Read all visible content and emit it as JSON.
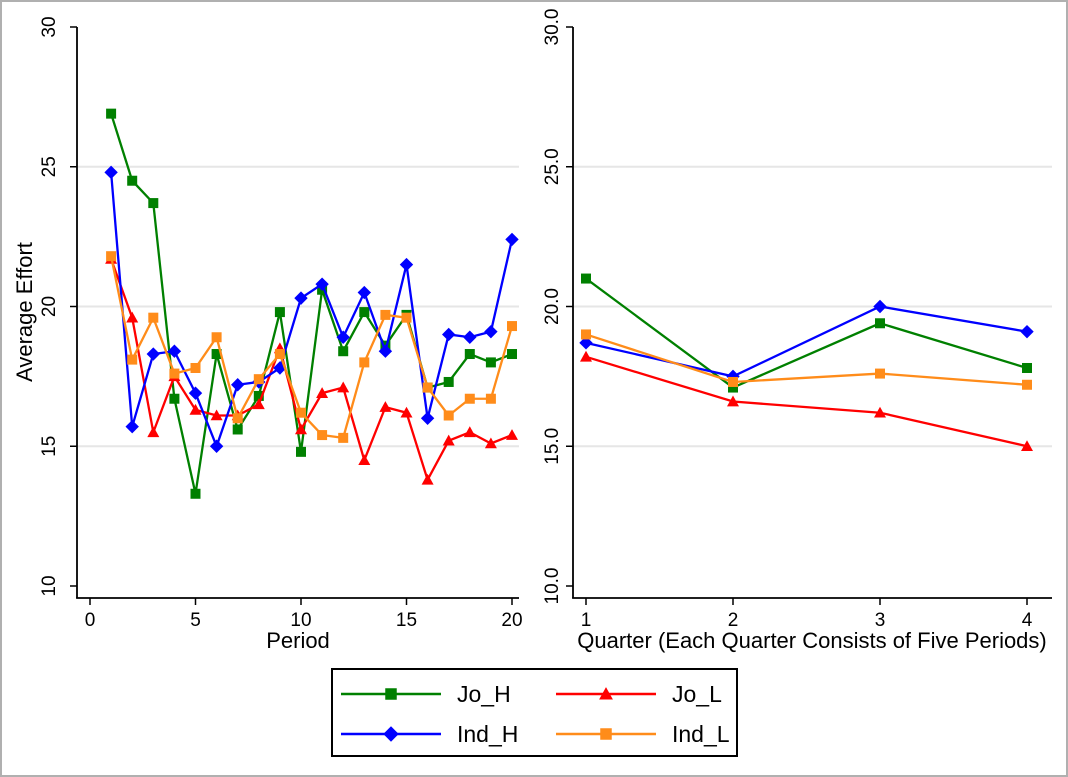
{
  "figure": {
    "ylabel": "Average Effort"
  },
  "colors": {
    "jo_h": "#008000",
    "jo_l": "#ff0000",
    "ind_h": "#0000ff",
    "ind_l": "#ff8c1a",
    "grid": "#e6e6e6",
    "axis": "#000000",
    "figure_border": "#b0b0b0",
    "legend_border": "#000000"
  },
  "legend": {
    "items": [
      {
        "label": "Jo_H",
        "series": "Jo_H"
      },
      {
        "label": "Jo_L",
        "series": "Jo_L"
      },
      {
        "label": "Ind_H",
        "series": "Ind_H"
      },
      {
        "label": "Ind_L",
        "series": "Ind_L"
      }
    ]
  },
  "chart_data": [
    {
      "type": "line",
      "panel": "left",
      "xlabel": "Period",
      "ylabel": "Average Effort",
      "xlim": [
        -0.6,
        20.3
      ],
      "ylim": [
        10,
        30
      ],
      "xticks": [
        0,
        5,
        10,
        15,
        20
      ],
      "xtick_labels": [
        "0",
        "5",
        "10",
        "15",
        "20"
      ],
      "yticks": [
        10,
        15,
        20,
        25,
        30
      ],
      "ytick_labels": [
        "10",
        "15",
        "20",
        "25",
        "30"
      ],
      "gridlines": [
        15,
        20,
        25
      ],
      "grid": true,
      "legend_position": "bottom-outside",
      "x": [
        1,
        2,
        3,
        4,
        5,
        6,
        7,
        8,
        9,
        10,
        11,
        12,
        13,
        14,
        15,
        16,
        17,
        18,
        19,
        20
      ],
      "series": [
        {
          "name": "Jo_H",
          "color": "#008000",
          "marker": "square",
          "values": [
            26.9,
            24.5,
            23.7,
            16.7,
            13.3,
            18.3,
            15.6,
            16.8,
            19.8,
            14.8,
            20.6,
            18.4,
            19.8,
            18.6,
            19.7,
            17.1,
            17.3,
            18.3,
            18.0,
            18.3
          ]
        },
        {
          "name": "Jo_L",
          "color": "#ff0000",
          "marker": "triangle",
          "values": [
            21.7,
            19.6,
            15.5,
            17.5,
            16.3,
            16.1,
            16.1,
            16.5,
            18.5,
            15.6,
            16.9,
            17.1,
            14.5,
            16.4,
            16.2,
            13.8,
            15.2,
            15.5,
            15.1,
            15.4
          ]
        },
        {
          "name": "Ind_H",
          "color": "#0000ff",
          "marker": "diamond",
          "values": [
            24.8,
            15.7,
            18.3,
            18.4,
            16.9,
            15.0,
            17.2,
            17.3,
            17.8,
            20.3,
            20.8,
            18.9,
            20.5,
            18.4,
            21.5,
            16.0,
            19.0,
            18.9,
            19.1,
            22.4
          ]
        },
        {
          "name": "Ind_L",
          "color": "#ff8c1a",
          "marker": "square",
          "values": [
            21.8,
            18.1,
            19.6,
            17.6,
            17.8,
            18.9,
            16.0,
            17.4,
            18.3,
            16.2,
            15.4,
            15.3,
            18.0,
            19.7,
            19.6,
            17.1,
            16.1,
            16.7,
            16.7,
            19.3
          ]
        }
      ]
    },
    {
      "type": "line",
      "panel": "right",
      "xlabel": "Quarter (Each Quarter Consists of Five Periods)",
      "ylabel": "",
      "xlim": [
        0.91,
        4.17
      ],
      "ylim": [
        10,
        30
      ],
      "xticks": [
        1,
        2,
        3,
        4
      ],
      "xtick_labels": [
        "1",
        "2",
        "3",
        "4"
      ],
      "yticks": [
        10,
        15,
        20,
        25,
        30
      ],
      "ytick_labels": [
        "10.0",
        "15.0",
        "20.0",
        "25.0",
        "30.0"
      ],
      "gridlines": [
        15,
        20,
        25
      ],
      "grid": true,
      "x": [
        1,
        2,
        3,
        4
      ],
      "series": [
        {
          "name": "Jo_H",
          "color": "#008000",
          "marker": "square",
          "values": [
            21.0,
            17.1,
            19.4,
            17.8
          ]
        },
        {
          "name": "Jo_L",
          "color": "#ff0000",
          "marker": "triangle",
          "values": [
            18.2,
            16.6,
            16.2,
            15.0
          ]
        },
        {
          "name": "Ind_H",
          "color": "#0000ff",
          "marker": "diamond",
          "values": [
            18.7,
            17.5,
            20.0,
            19.1
          ]
        },
        {
          "name": "Ind_L",
          "color": "#ff8c1a",
          "marker": "square",
          "values": [
            19.0,
            17.3,
            17.6,
            17.2
          ]
        }
      ]
    }
  ]
}
